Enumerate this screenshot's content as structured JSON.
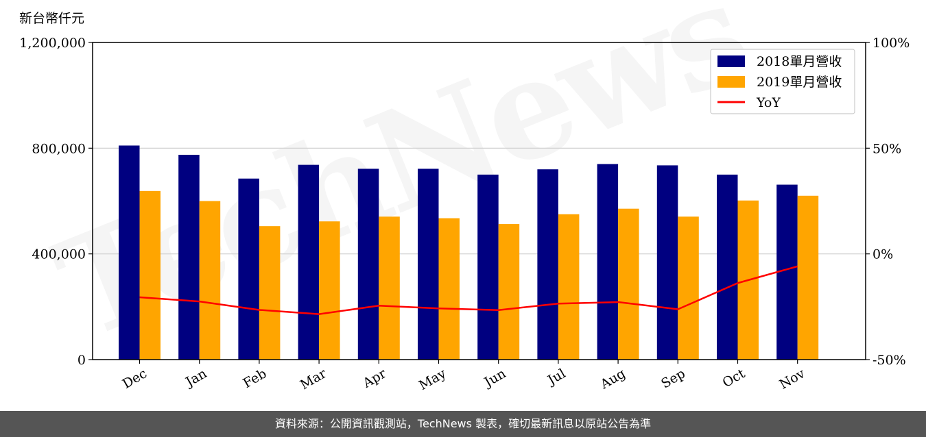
{
  "chart_data": {
    "type": "bar",
    "unit_label": "新台幣仟元",
    "categories": [
      "Dec",
      "Jan",
      "Feb",
      "Mar",
      "Apr",
      "May",
      "Jun",
      "Jul",
      "Aug",
      "Sep",
      "Oct",
      "Nov"
    ],
    "series": [
      {
        "name": "2018單月營收",
        "color": "#000080",
        "values": [
          810000,
          775000,
          685000,
          737000,
          722000,
          722000,
          700000,
          720000,
          740000,
          735000,
          700000,
          662000
        ]
      },
      {
        "name": "2019單月營收",
        "color": "#FFA500",
        "values": [
          638000,
          600000,
          505000,
          523000,
          541000,
          535000,
          513000,
          550000,
          571000,
          541000,
          602000,
          620000
        ]
      }
    ],
    "line_series": {
      "name": "YoY",
      "color": "#FF0000",
      "axis": "right",
      "values": [
        -20.5,
        -22.5,
        -26.5,
        -28.5,
        -24.5,
        -25.8,
        -26.6,
        -23.5,
        -22.8,
        -26.2,
        -13.8,
        -5.9
      ]
    },
    "y_left": {
      "ylim": [
        0,
        1200000
      ],
      "ticks": [
        "0",
        "400,000",
        "800,000",
        "1,200,000"
      ]
    },
    "y_right": {
      "ylim": [
        -50,
        100
      ],
      "ticks": [
        "-50%",
        "0%",
        "50%",
        "100%"
      ]
    },
    "grid": "horizontal",
    "legend_position": "top-right",
    "watermark": "TechNews"
  },
  "footer": {
    "text": "資料來源：公開資訊觀測站，TechNews 製表，確切最新訊息以原站公告為準"
  }
}
